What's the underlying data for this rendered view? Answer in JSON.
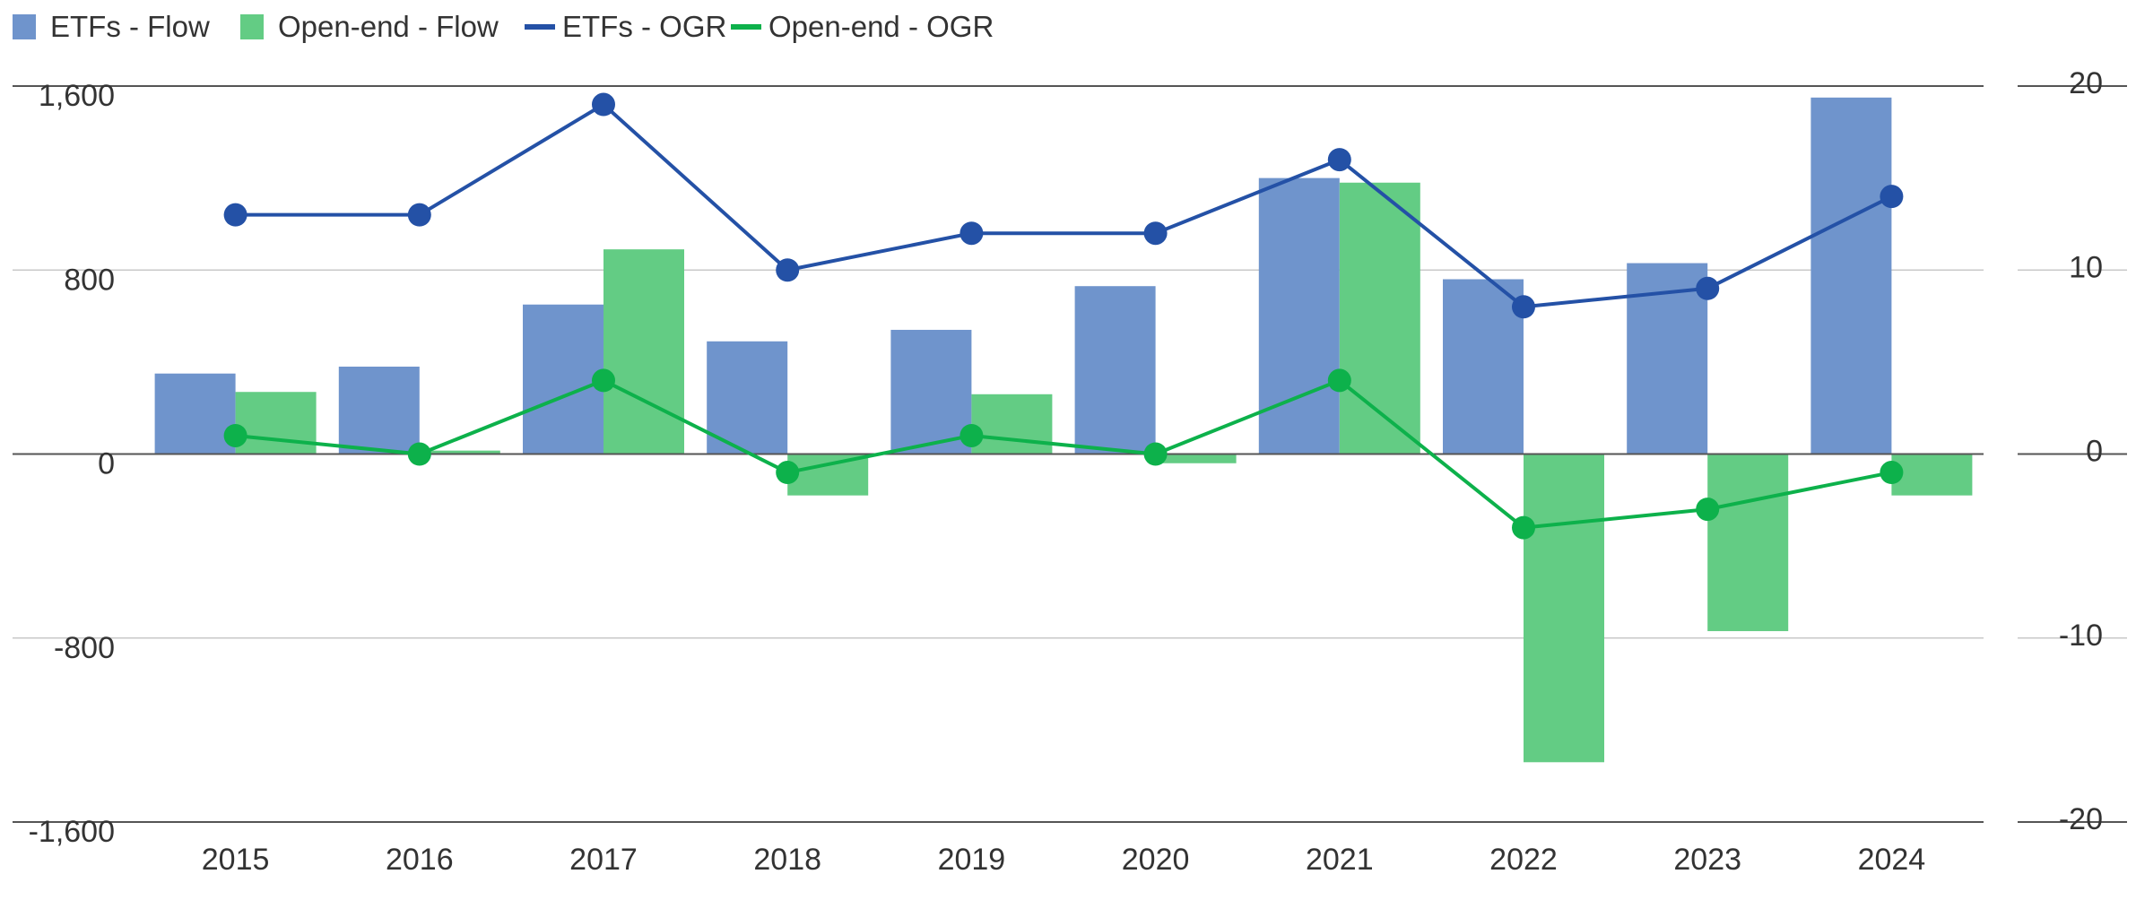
{
  "chart_data": {
    "type": "bar",
    "categories": [
      "2015",
      "2016",
      "2017",
      "2018",
      "2019",
      "2020",
      "2021",
      "2022",
      "2023",
      "2024"
    ],
    "left_axis": {
      "ylim": [
        -1600,
        1600
      ],
      "ticks": [
        1600,
        800,
        0,
        -800,
        -1600
      ],
      "tick_labels": [
        "1,600",
        "800",
        "0",
        "-800",
        "-1,600"
      ]
    },
    "right_axis": {
      "ylim": [
        -20,
        20
      ],
      "ticks": [
        20,
        10,
        0,
        -10,
        -20
      ],
      "tick_labels": [
        "20",
        "10",
        "0",
        "-10",
        "-20"
      ]
    },
    "bar_series": [
      {
        "name": "ETFs - Flow",
        "color": "#6f94cc",
        "axis": "left",
        "values": [
          350,
          380,
          650,
          490,
          540,
          730,
          1200,
          760,
          830,
          1550
        ]
      },
      {
        "name": "Open-end - Flow",
        "color": "#63cc84",
        "axis": "left",
        "values": [
          270,
          15,
          890,
          -180,
          260,
          -40,
          1180,
          -1340,
          -770,
          -180
        ]
      }
    ],
    "line_series": [
      {
        "name": "ETFs - OGR",
        "color": "#2451a6",
        "axis": "right",
        "values": [
          13,
          13,
          19,
          10,
          12,
          12,
          16,
          8,
          9,
          14
        ]
      },
      {
        "name": "Open-end - OGR",
        "color": "#0db14b",
        "axis": "right",
        "values": [
          1,
          0,
          4,
          -1,
          1,
          0,
          4,
          -4,
          -3,
          -1
        ]
      }
    ],
    "legend_position": "top-left",
    "grid": true,
    "title": "",
    "xlabel": "",
    "ylabel": ""
  }
}
